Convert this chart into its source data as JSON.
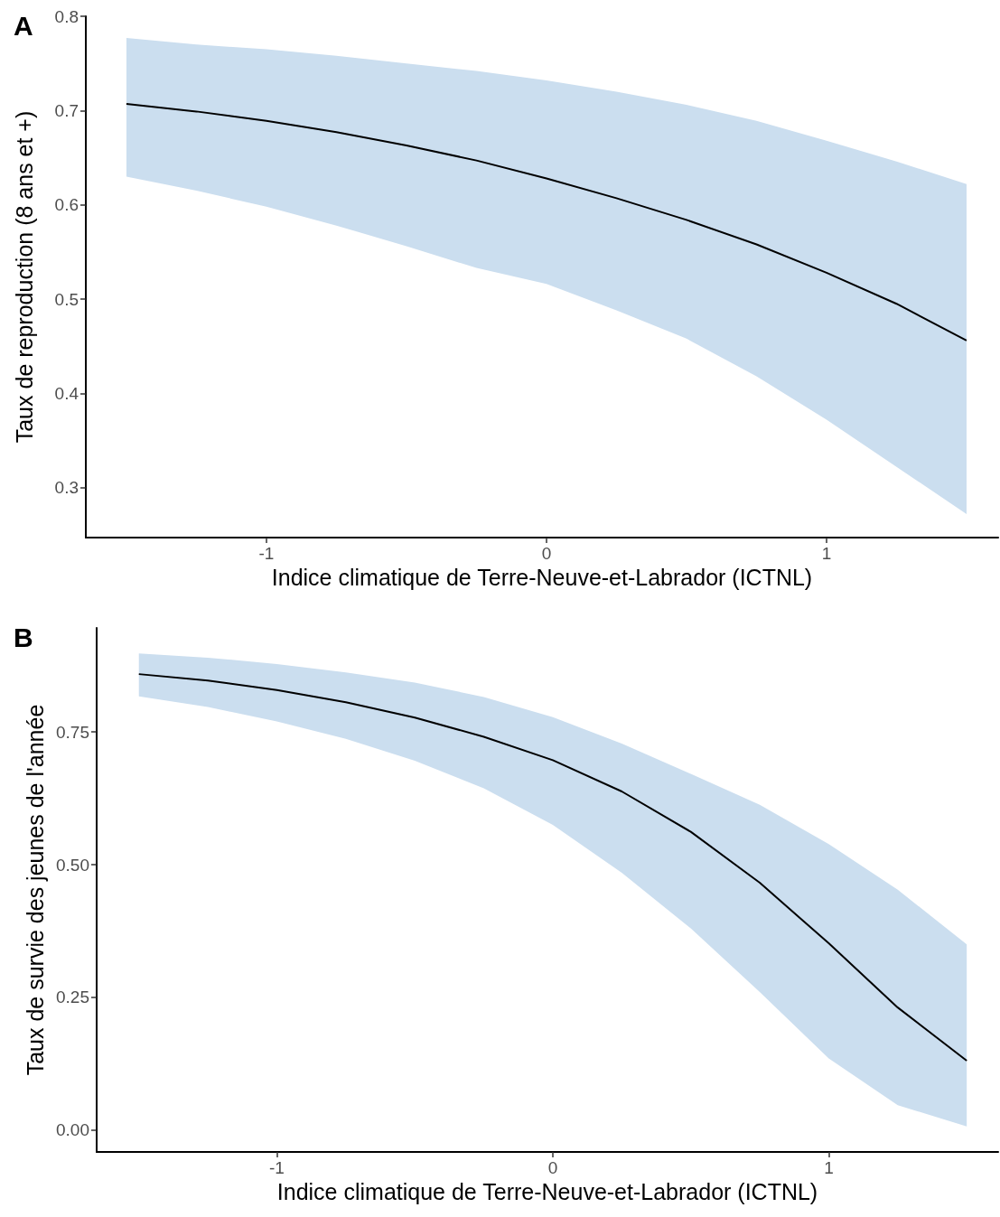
{
  "chart_data": [
    {
      "type": "line",
      "title": "A",
      "xlabel": "Indice climatique de Terre-Neuve-et-Labrador (ICTNL)",
      "ylabel": "Taux de reproduction (8 ans et +)",
      "x": [
        -1.5,
        -1.25,
        -1,
        -0.75,
        -0.5,
        -0.25,
        0,
        0.25,
        0.5,
        0.75,
        1,
        1.25,
        1.5
      ],
      "series": [
        {
          "color": "#000000",
          "values": [
            0.707,
            0.699,
            0.689,
            0.677,
            0.663,
            0.647,
            0.628,
            0.607,
            0.584,
            0.558,
            0.528,
            0.495,
            0.456
          ],
          "upper": [
            0.777,
            0.77,
            0.765,
            0.758,
            0.75,
            0.742,
            0.732,
            0.72,
            0.706,
            0.689,
            0.668,
            0.646,
            0.622
          ],
          "lower": [
            0.63,
            0.615,
            0.598,
            0.578,
            0.556,
            0.533,
            0.516,
            0.488,
            0.458,
            0.418,
            0.372,
            0.322,
            0.272
          ]
        }
      ],
      "xlim": [
        -1.645,
        1.613
      ],
      "xticks": [
        -1,
        0,
        1
      ],
      "ylim": [
        0.247,
        0.8
      ],
      "yticks": [
        0.3,
        0.4,
        0.5,
        0.6,
        0.7,
        0.8
      ],
      "marker": "none",
      "line_style": "solid"
    },
    {
      "type": "line",
      "title": "B",
      "xlabel": "Indice climatique de Terre-Neuve-et-Labrador (ICTNL)",
      "ylabel": "Taux de survie des jeunes de l'année",
      "x": [
        -1.5,
        -1.25,
        -1,
        -0.75,
        -0.5,
        -0.25,
        0,
        0.25,
        0.5,
        0.75,
        1,
        1.25,
        1.5
      ],
      "series": [
        {
          "color": "#000000",
          "values": [
            0.859,
            0.847,
            0.829,
            0.806,
            0.777,
            0.741,
            0.697,
            0.638,
            0.562,
            0.466,
            0.352,
            0.231,
            0.131
          ],
          "upper": [
            0.898,
            0.89,
            0.878,
            0.862,
            0.843,
            0.816,
            0.778,
            0.728,
            0.671,
            0.613,
            0.539,
            0.453,
            0.35
          ],
          "lower": [
            0.817,
            0.797,
            0.77,
            0.737,
            0.696,
            0.644,
            0.575,
            0.485,
            0.38,
            0.26,
            0.135,
            0.047,
            0.007
          ]
        }
      ],
      "xlim": [
        -1.653,
        1.614
      ],
      "xticks": [
        -1,
        0,
        1
      ],
      "ylim": [
        -0.041,
        0.946
      ],
      "yticks": [
        {
          "value": 0,
          "label": "0.00"
        },
        {
          "value": 0.25,
          "label": "0.25"
        },
        {
          "value": 0.5,
          "label": "0.50"
        },
        {
          "value": 0.75,
          "label": "0.75"
        }
      ],
      "marker": "none",
      "line_style": "solid"
    }
  ]
}
